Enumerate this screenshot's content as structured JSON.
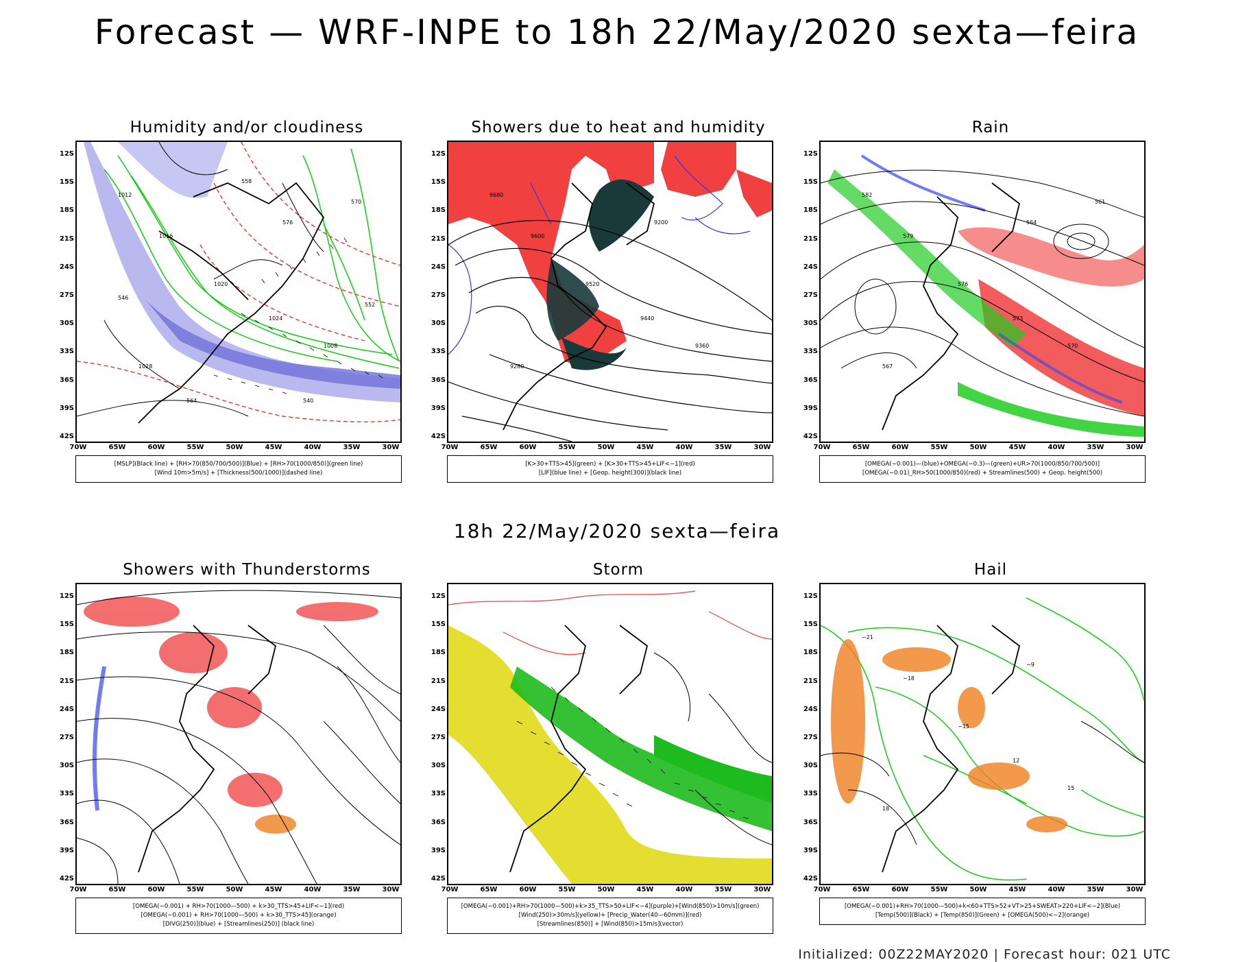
{
  "header": {
    "title": "Forecast — WRF-INPE to 18h 22/May/2020 sexta—feira"
  },
  "mid_title": "18h 22/May/2020 sexta—feira",
  "footer": "Initialized: 00Z22MAY2020 | Forecast hour: 021 UTC",
  "axes": {
    "lat_labels": [
      "12S",
      "15S",
      "18S",
      "21S",
      "24S",
      "27S",
      "30S",
      "33S",
      "36S",
      "39S",
      "42S"
    ],
    "lon_labels": [
      "70W",
      "65W",
      "60W",
      "55W",
      "50W",
      "45W",
      "40W",
      "35W",
      "30W"
    ]
  },
  "panels": [
    {
      "id": "humidity",
      "title": "Humidity and/or cloudiness",
      "legend": [
        "[MSLP](Black line) + [RH>70(850/700/500)](Blue) + [RH>70(1000/850)](green line)",
        "[Wind 10m>5m/s] + [Thickness(500/1000)](dashed line)"
      ],
      "contour_labels": [
        "1012",
        "1016",
        "1020",
        "1024",
        "1008",
        "1028",
        "576",
        "570",
        "564",
        "558",
        "552",
        "546",
        "540"
      ]
    },
    {
      "id": "showers-heat",
      "title": "Showers due to heat and humidity",
      "legend": [
        "[K>30+TTS>45](green) + [K>30+TTS>45+LIF<−1](red)",
        "[LIF](blue line) + [Geop. height(300)](black line)"
      ],
      "contour_labels": [
        "9680",
        "9600",
        "9520",
        "9440",
        "9360",
        "9280",
        "9200"
      ]
    },
    {
      "id": "rain",
      "title": "Rain",
      "legend": [
        "[OMEGA(−0.001)—(blue)+OMEGA(−0.3)—(green)+UR>70(1000/850/700/500)]",
        "[OMEGA(−0.01)_RH>50(1000/850)(red) + Streamlines(500) + Geop. height(500)"
      ],
      "contour_labels": [
        "582",
        "579",
        "576",
        "573",
        "570",
        "567",
        "564",
        "561"
      ]
    },
    {
      "id": "thunderstorms",
      "title": "Showers with Thunderstorms",
      "legend": [
        "[OMEGA(−0.001) + RH>70(1000—500) + k>30_TTS>45+LIF<−1](red)",
        "[OMEGA(−0.001) + RH>70(1000—500) + k>30_TTS>45](orange)",
        "[DIVG(250)](blue) + [Streamlines(250)] (black line)"
      ],
      "contour_labels": []
    },
    {
      "id": "storm",
      "title": "Storm",
      "legend": [
        "[OMEGA(−0.001)+RH>70(1000—500)+k>35_TTS>50+LIF<−4](purple)+[Wind(850)>10m/s](green)",
        "[Wind(250)>30m/s](yellow)+ [Precip_Water(40—60mm)](red)",
        "[Streamlines(850)] + [Wind(850)>15m/s](vector)"
      ],
      "contour_labels": []
    },
    {
      "id": "hail",
      "title": "Hail",
      "legend": [
        "[OMEGA(−0.001)+RH>70(1000—500)+k<60+TTS>52+VT>25+SWEAT>220+LIF<−2](Blue)",
        "[Temp(500)](Black) + [Temp(850)](Green) + [OMEGA(500)<−2](orange)"
      ],
      "contour_labels": [
        "−21",
        "−18",
        "−15",
        "12",
        "15",
        "18",
        "−9"
      ]
    }
  ]
}
